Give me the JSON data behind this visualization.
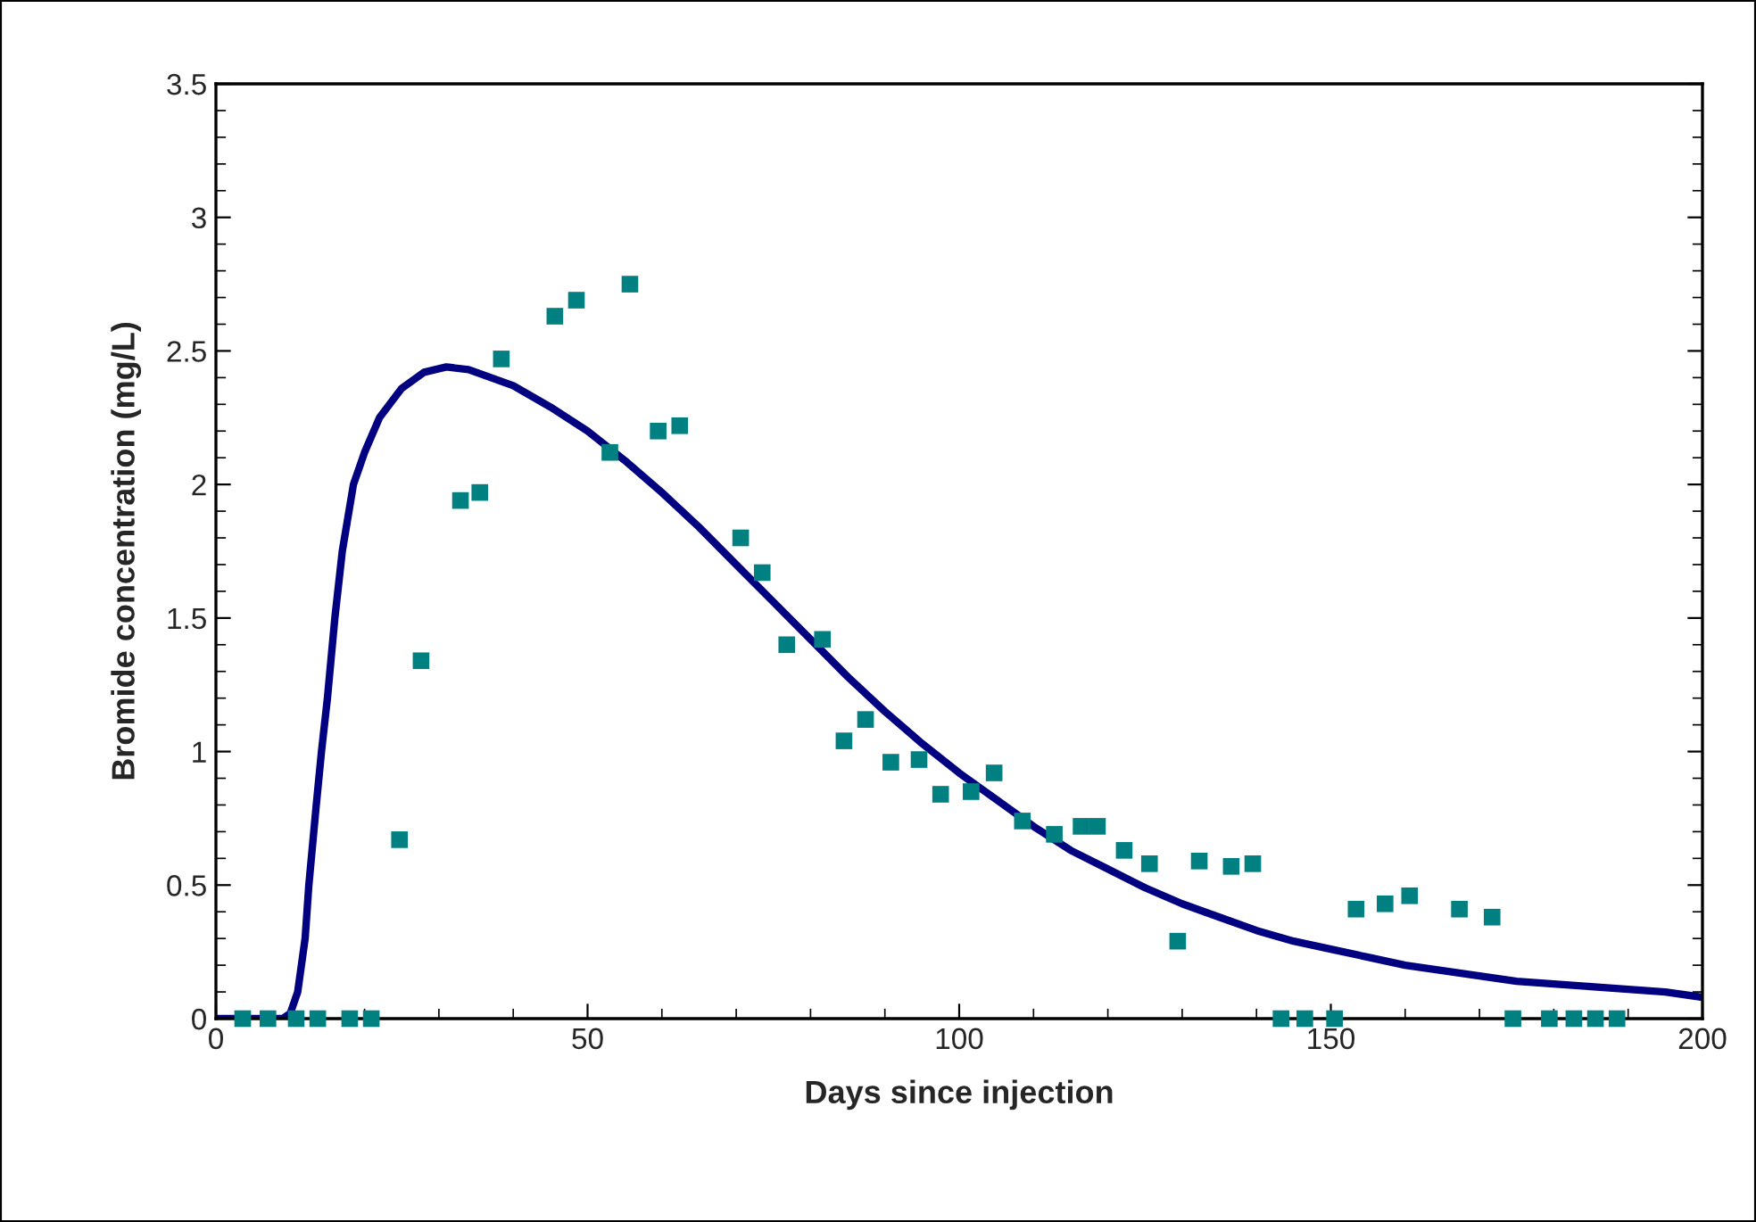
{
  "chart_data": {
    "type": "scatter",
    "xlabel": "Days since injection",
    "ylabel": "Bromide concentration (mg/L)",
    "xlim": [
      0,
      200
    ],
    "ylim": [
      0,
      3.5
    ],
    "xticks": [
      0,
      50,
      100,
      150,
      200
    ],
    "yticks": [
      0,
      0.5,
      1,
      1.5,
      2,
      2.5,
      3,
      3.5
    ],
    "grid": false,
    "series": [
      {
        "type": "line",
        "color": "#000080",
        "marker": "none",
        "line_style": "solid",
        "x": [
          0,
          9,
          10,
          11,
          12,
          12.5,
          13.5,
          14.2,
          15,
          16,
          17,
          18.5,
          20,
          22,
          25,
          28,
          31,
          34,
          40,
          45,
          50,
          55,
          60,
          65,
          70,
          75,
          80,
          85,
          90,
          95,
          100,
          105,
          110,
          115,
          120,
          125,
          130,
          135,
          140,
          145,
          150,
          155,
          160,
          165,
          170,
          175,
          180,
          185,
          190,
          195,
          200
        ],
        "values": [
          0,
          0,
          0.02,
          0.1,
          0.3,
          0.5,
          0.8,
          1.0,
          1.2,
          1.5,
          1.75,
          2.0,
          2.12,
          2.25,
          2.36,
          2.42,
          2.44,
          2.43,
          2.37,
          2.29,
          2.2,
          2.09,
          1.97,
          1.84,
          1.7,
          1.56,
          1.42,
          1.28,
          1.15,
          1.03,
          0.92,
          0.82,
          0.72,
          0.63,
          0.56,
          0.49,
          0.43,
          0.38,
          0.33,
          0.29,
          0.26,
          0.23,
          0.2,
          0.18,
          0.16,
          0.14,
          0.13,
          0.12,
          0.11,
          0.1,
          0.08
        ]
      },
      {
        "type": "scatter",
        "color": "#008080",
        "marker": "square",
        "x": [
          3.6,
          7,
          10.8,
          13.7,
          18,
          20.9,
          24.7,
          27.6,
          32.9,
          35.5,
          38.4,
          45.6,
          48.5,
          53,
          55.7,
          59.5,
          62.4,
          70.6,
          73.5,
          76.8,
          81.6,
          84.5,
          87.4,
          90.8,
          94.6,
          97.5,
          101.6,
          104.7,
          108.5,
          112.8,
          116.4,
          118.6,
          122.2,
          125.6,
          129.4,
          132.3,
          136.6,
          139.5,
          143.3,
          146.5,
          150.5,
          153.4,
          157.3,
          160.6,
          167.3,
          171.7,
          174.5,
          179.4,
          182.7,
          185.6,
          188.5
        ],
        "values": [
          0,
          0,
          0,
          0,
          0,
          0,
          0.67,
          1.34,
          1.94,
          1.97,
          2.47,
          2.63,
          2.69,
          2.12,
          2.75,
          2.2,
          2.22,
          1.8,
          1.67,
          1.4,
          1.42,
          1.04,
          1.12,
          0.96,
          0.97,
          0.84,
          0.85,
          0.92,
          0.74,
          0.69,
          0.72,
          0.72,
          0.63,
          0.58,
          0.29,
          0.59,
          0.57,
          0.58,
          0,
          0,
          0,
          0.41,
          0.43,
          0.46,
          0.41,
          0.38,
          0,
          0,
          0,
          0,
          0
        ]
      }
    ]
  }
}
